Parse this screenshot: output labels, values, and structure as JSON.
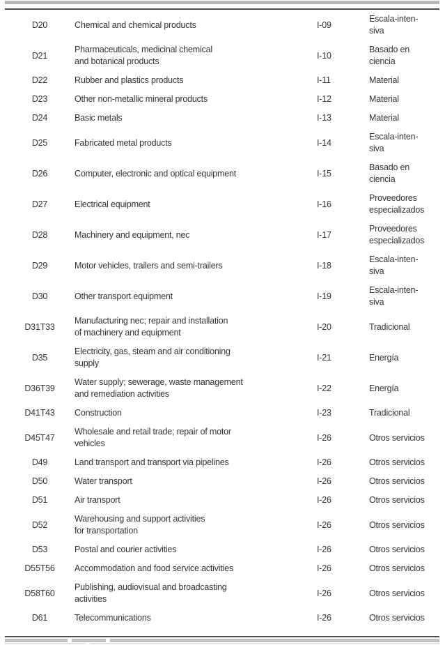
{
  "table": {
    "rows": [
      {
        "code": "D20",
        "description_lines": [
          "Chemical and chemical products"
        ],
        "icode": "I-09",
        "category_lines": [
          "Escala-inten-",
          "siva"
        ]
      },
      {
        "code": "D21",
        "description_lines": [
          "Pharmaceuticals, medicinal chemical",
          "and botanical products"
        ],
        "icode": "I-10",
        "category_lines": [
          "Basado en",
          "ciencia"
        ]
      },
      {
        "code": "D22",
        "description_lines": [
          "Rubber and plastics products"
        ],
        "icode": "I-11",
        "category_lines": [
          "Material"
        ]
      },
      {
        "code": "D23",
        "description_lines": [
          "Other non-metallic mineral products"
        ],
        "icode": "I-12",
        "category_lines": [
          "Material"
        ]
      },
      {
        "code": "D24",
        "description_lines": [
          "Basic metals"
        ],
        "icode": "I-13",
        "category_lines": [
          "Material"
        ]
      },
      {
        "code": "D25",
        "description_lines": [
          "Fabricated metal products"
        ],
        "icode": "I-14",
        "category_lines": [
          "Escala-inten-",
          "siva"
        ]
      },
      {
        "code": "D26",
        "description_lines": [
          "Computer, electronic and optical equipment"
        ],
        "icode": "I-15",
        "category_lines": [
          "Basado en",
          "ciencia"
        ]
      },
      {
        "code": "D27",
        "description_lines": [
          "Electrical equipment"
        ],
        "icode": "I-16",
        "category_lines": [
          "Proveedores",
          "especializados"
        ]
      },
      {
        "code": "D28",
        "description_lines": [
          "Machinery and equipment, nec"
        ],
        "icode": "I-17",
        "category_lines": [
          "Proveedores",
          "especializados"
        ]
      },
      {
        "code": "D29",
        "description_lines": [
          "Motor vehicles, trailers and semi-trailers"
        ],
        "icode": "I-18",
        "category_lines": [
          "Escala-inten-",
          "siva"
        ]
      },
      {
        "code": "D30",
        "description_lines": [
          "Other transport equipment"
        ],
        "icode": "I-19",
        "category_lines": [
          "Escala-inten-",
          "siva"
        ]
      },
      {
        "code": "D31T33",
        "description_lines": [
          "Manufacturing nec; repair and installation",
          "of machinery and equipment"
        ],
        "icode": "I-20",
        "category_lines": [
          "Tradicional"
        ]
      },
      {
        "code": "D35",
        "description_lines": [
          "Electricity, gas, steam and air conditioning",
          "supply"
        ],
        "icode": "I-21",
        "category_lines": [
          "Energía"
        ]
      },
      {
        "code": "D36T39",
        "description_lines": [
          "Water supply; sewerage, waste management",
          "and remediation activities"
        ],
        "icode": "I-22",
        "category_lines": [
          "Energía"
        ]
      },
      {
        "code": "D41T43",
        "description_lines": [
          "Construction"
        ],
        "icode": "I-23",
        "category_lines": [
          "Tradicional"
        ]
      },
      {
        "code": "D45T47",
        "description_lines": [
          "Wholesale and retail trade; repair of motor",
          "vehicles"
        ],
        "icode": "I-26",
        "category_lines": [
          "Otros servicios"
        ]
      },
      {
        "code": "D49",
        "description_lines": [
          "Land transport and transport via pipelines"
        ],
        "icode": "I-26",
        "category_lines": [
          "Otros servicios"
        ]
      },
      {
        "code": "D50",
        "description_lines": [
          "Water transport"
        ],
        "icode": "I-26",
        "category_lines": [
          "Otros servicios"
        ]
      },
      {
        "code": "D51",
        "description_lines": [
          "Air transport"
        ],
        "icode": "I-26",
        "category_lines": [
          "Otros servicios"
        ]
      },
      {
        "code": "D52",
        "description_lines": [
          "Warehousing and support activities",
          "for transportation"
        ],
        "icode": "I-26",
        "category_lines": [
          "Otros servicios"
        ]
      },
      {
        "code": "D53",
        "description_lines": [
          "Postal and courier activities"
        ],
        "icode": "I-26",
        "category_lines": [
          "Otros servicios"
        ]
      },
      {
        "code": "D55T56",
        "description_lines": [
          "Accommodation and food service activities"
        ],
        "icode": "I-26",
        "category_lines": [
          "Otros servicios"
        ]
      },
      {
        "code": "D58T60",
        "description_lines": [
          "Publishing, audiovisual and broadcasting",
          "activities"
        ],
        "icode": "I-26",
        "category_lines": [
          "Otros servicios"
        ]
      },
      {
        "code": "D61",
        "description_lines": [
          "Telecommunications"
        ],
        "icode": "I-26",
        "category_lines": [
          "Otros servicios"
        ]
      }
    ]
  },
  "colors": {
    "text": "#333333",
    "rule": "#4e4e4e",
    "divider_bar": "#b9b9b9"
  }
}
